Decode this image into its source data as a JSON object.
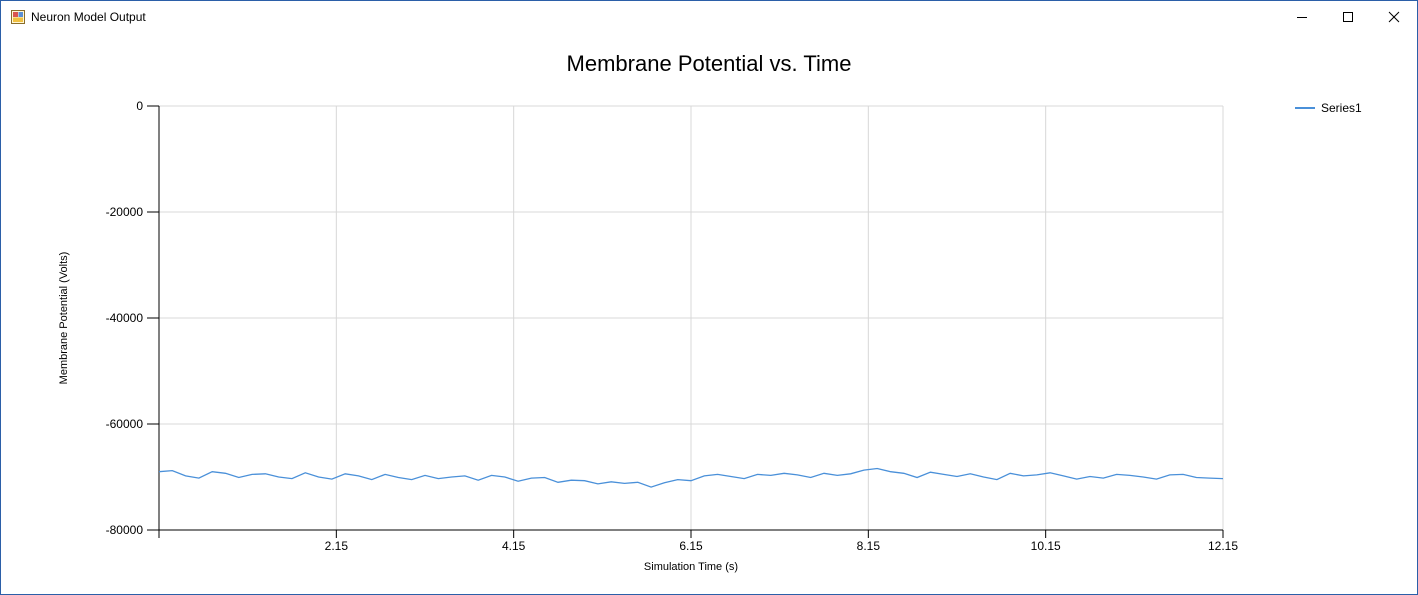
{
  "window": {
    "title": "Neuron Model Output",
    "controls": [
      "minimize",
      "maximize",
      "close"
    ]
  },
  "chart_data": {
    "type": "line",
    "title": "Membrane Potential vs. Time",
    "xlabel": "Simulation Time (s)",
    "ylabel": "Membrane Potential (Volts)",
    "xlim": [
      0.15,
      12.15
    ],
    "ylim": [
      -80000,
      0
    ],
    "x_ticks": [
      "2.15",
      "4.15",
      "6.15",
      "8.15",
      "10.15",
      "12.15"
    ],
    "x_tick_values": [
      2.15,
      4.15,
      6.15,
      8.15,
      10.15,
      12.15
    ],
    "y_ticks": [
      "0",
      "-20000",
      "-40000",
      "-60000",
      "-80000"
    ],
    "y_tick_values": [
      0,
      -20000,
      -40000,
      -60000,
      -80000
    ],
    "grid": true,
    "legend": {
      "placement": "top-right",
      "entries": [
        "Series1"
      ]
    },
    "colors": {
      "series": "#4a90d9",
      "grid": "#d8d8d8",
      "axis": "#000000"
    },
    "series": [
      {
        "name": "Series1",
        "x": [
          0.15,
          0.3,
          0.45,
          0.6,
          0.75,
          0.9,
          1.05,
          1.2,
          1.35,
          1.5,
          1.65,
          1.8,
          1.95,
          2.1,
          2.25,
          2.4,
          2.55,
          2.7,
          2.85,
          3.0,
          3.15,
          3.3,
          3.45,
          3.6,
          3.75,
          3.9,
          4.05,
          4.2,
          4.35,
          4.5,
          4.65,
          4.8,
          4.95,
          5.1,
          5.25,
          5.4,
          5.55,
          5.7,
          5.85,
          6.0,
          6.15,
          6.3,
          6.45,
          6.6,
          6.75,
          6.9,
          7.05,
          7.2,
          7.35,
          7.5,
          7.65,
          7.8,
          7.95,
          8.1,
          8.25,
          8.4,
          8.55,
          8.7,
          8.85,
          9.0,
          9.15,
          9.3,
          9.45,
          9.6,
          9.75,
          9.9,
          10.05,
          10.2,
          10.35,
          10.5,
          10.65,
          10.8,
          10.95,
          11.1,
          11.25,
          11.4,
          11.55,
          11.7,
          11.85,
          12.0,
          12.15
        ],
        "values": [
          -69000,
          -68800,
          -69800,
          -70200,
          -69000,
          -69300,
          -70100,
          -69500,
          -69400,
          -70000,
          -70300,
          -69200,
          -70000,
          -70400,
          -69400,
          -69800,
          -70500,
          -69500,
          -70100,
          -70500,
          -69700,
          -70300,
          -70000,
          -69800,
          -70600,
          -69700,
          -70000,
          -70800,
          -70200,
          -70100,
          -71000,
          -70600,
          -70700,
          -71300,
          -70900,
          -71200,
          -71000,
          -71900,
          -71100,
          -70500,
          -70700,
          -69800,
          -69500,
          -69900,
          -70300,
          -69500,
          -69700,
          -69300,
          -69600,
          -70100,
          -69300,
          -69700,
          -69400,
          -68700,
          -68400,
          -69000,
          -69300,
          -70100,
          -69100,
          -69500,
          -69900,
          -69400,
          -70000,
          -70500,
          -69300,
          -69800,
          -69600,
          -69200,
          -69800,
          -70400,
          -69900,
          -70200,
          -69500,
          -69700,
          -70000,
          -70400,
          -69600,
          -69500,
          -70100,
          -70200,
          -70300
        ]
      }
    ]
  }
}
